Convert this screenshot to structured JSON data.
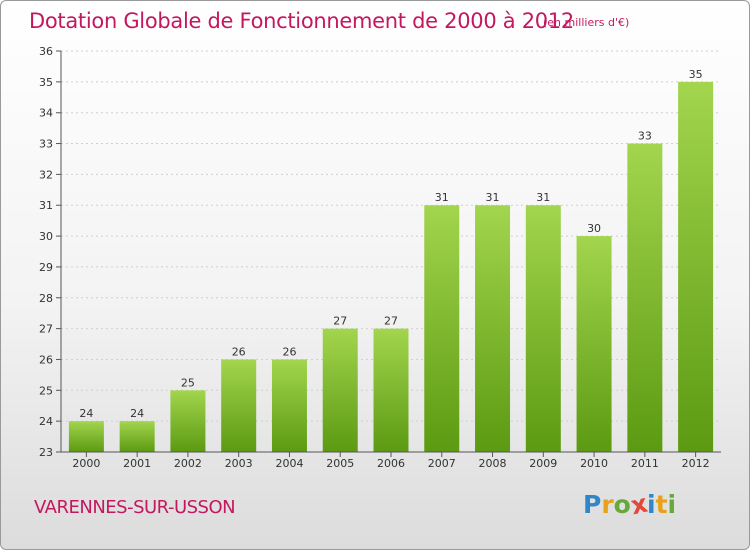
{
  "title": "Dotation Globale de Fonctionnement de 2000 à 2012",
  "subtitle": "(en milliers d'€)",
  "commune": "VARENNES-SUR-USSON",
  "logo": {
    "letters": [
      "P",
      "r",
      "o",
      "x",
      "i",
      "t",
      "i"
    ],
    "colors": [
      "#2f86c9",
      "#e8a21a",
      "#66a83a",
      "#e14a3a",
      "#2f86c9",
      "#e8a21a",
      "#66a83a"
    ]
  },
  "colors": {
    "bar_top": "#a3d54e",
    "bar_bottom": "#5b9a12",
    "axis": "#555555",
    "grid": "#cfcfcf",
    "text": "#333333",
    "accent": "#c3185f"
  },
  "chart_data": {
    "type": "bar",
    "categories": [
      "2000",
      "2001",
      "2002",
      "2003",
      "2004",
      "2005",
      "2006",
      "2007",
      "2008",
      "2009",
      "2010",
      "2011",
      "2012"
    ],
    "values": [
      24,
      24,
      25,
      26,
      26,
      27,
      27,
      31,
      31,
      31,
      30,
      33,
      35
    ],
    "ylim": [
      23,
      36
    ],
    "yticks": [
      23,
      24,
      25,
      26,
      27,
      28,
      29,
      30,
      31,
      32,
      33,
      34,
      35,
      36
    ],
    "grid": true,
    "data_labels": true
  }
}
